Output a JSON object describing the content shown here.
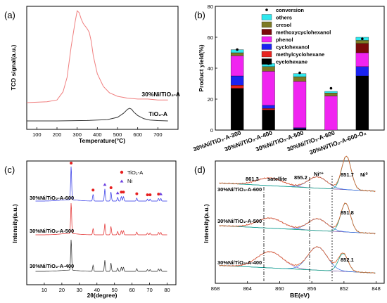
{
  "chart_data": [
    {
      "panel": "(a)",
      "type": "line",
      "xlabel": "Temperature(°C)",
      "ylabel": "TCD signal(a.u.)",
      "xlim": [
        50,
        800
      ],
      "xticks": [
        100,
        200,
        300,
        400,
        500,
        600,
        700
      ],
      "series": [
        {
          "name": "30%Ni/TiO₂-A",
          "color": "#f07f7f",
          "x": [
            50,
            150,
            200,
            230,
            250,
            260,
            270,
            290,
            300,
            310,
            320,
            330,
            340,
            350,
            360,
            370,
            380,
            400,
            430,
            460,
            500,
            550,
            600,
            650,
            700,
            750
          ],
          "y": [
            0.0,
            0.01,
            0.03,
            0.12,
            0.28,
            0.45,
            0.62,
            0.9,
            1.02,
            1.0,
            0.93,
            0.88,
            0.85,
            0.82,
            0.78,
            0.68,
            0.52,
            0.32,
            0.18,
            0.11,
            0.07,
            0.05,
            0.04,
            0.04,
            0.03,
            0.03
          ]
        },
        {
          "name": "TiO₂-A",
          "color": "#333333",
          "x": [
            50,
            200,
            350,
            450,
            500,
            530,
            550,
            560,
            570,
            580,
            600,
            630,
            660,
            700,
            750
          ],
          "y": [
            0.0,
            0.0,
            0.005,
            0.015,
            0.04,
            0.085,
            0.13,
            0.14,
            0.13,
            0.1,
            0.06,
            0.025,
            0.01,
            0.004,
            0.0
          ]
        }
      ]
    },
    {
      "panel": "(b)",
      "type": "bar",
      "stacked": true,
      "ylabel": "Product yield(%)",
      "ylim": [
        0,
        80
      ],
      "yticks": [
        0,
        20,
        40,
        60,
        80
      ],
      "categories": [
        "30%Ni/TiO₂-A-300",
        "30%Ni/TiO₂-A-400",
        "30%Ni/TiO₂-A-500",
        "30%Ni/TiO₂-A-600",
        "30%Ni/TiO₂-A-600-O₂"
      ],
      "series": [
        {
          "name": "cyclohexane",
          "color": "#000000",
          "values": [
            27,
            13,
            1,
            0,
            35
          ]
        },
        {
          "name": "methylcyclohexane",
          "color": "#e8231f",
          "values": [
            2,
            1,
            0,
            0,
            0
          ]
        },
        {
          "name": "cyclohexanol",
          "color": "#1a23f0",
          "values": [
            6,
            2,
            0.5,
            0,
            6
          ]
        },
        {
          "name": "phenol",
          "color": "#f024f0",
          "values": [
            13,
            22,
            30,
            22,
            9
          ]
        },
        {
          "name": "methoxycyclohexanol",
          "color": "#7a0a0a",
          "values": [
            0,
            0,
            0,
            0,
            6
          ]
        },
        {
          "name": "cresol",
          "color": "#7d7a25",
          "values": [
            2,
            3,
            3,
            2,
            2
          ]
        },
        {
          "name": "others",
          "color": "#2ee8ee",
          "values": [
            2,
            2,
            2,
            1,
            2
          ]
        }
      ],
      "conversion": {
        "name": "conversion",
        "values": [
          52,
          43,
          37,
          27,
          59
        ]
      }
    },
    {
      "panel": "(c)",
      "type": "line",
      "xlabel": "2θ(degree)",
      "ylabel": "Intensity(a.u.)",
      "xlim": [
        0,
        85
      ],
      "xticks": [
        10,
        20,
        30,
        40,
        50,
        60,
        70,
        80
      ],
      "legend": [
        {
          "label": "TiO₂-A",
          "marker": "circle",
          "color": "#e62020"
        },
        {
          "label": "Ni",
          "marker": "triangle",
          "color": "#6a3ee0"
        }
      ],
      "peaks": [
        {
          "x": 25.3,
          "h": 1.0,
          "phase": "TiO₂-A"
        },
        {
          "x": 37.8,
          "h": 0.2,
          "phase": "TiO₂-A"
        },
        {
          "x": 44.5,
          "h": 0.36,
          "phase": "Ni"
        },
        {
          "x": 48.0,
          "h": 0.27,
          "phase": "TiO₂-A"
        },
        {
          "x": 51.8,
          "h": 0.11,
          "phase": "Ni"
        },
        {
          "x": 53.9,
          "h": 0.14,
          "phase": "TiO₂-A"
        },
        {
          "x": 55.1,
          "h": 0.14,
          "phase": "TiO₂-A"
        },
        {
          "x": 62.7,
          "h": 0.09,
          "phase": "TiO₂-A"
        },
        {
          "x": 68.8,
          "h": 0.06,
          "phase": "TiO₂-A"
        },
        {
          "x": 70.3,
          "h": 0.06,
          "phase": "TiO₂-A"
        },
        {
          "x": 75.1,
          "h": 0.08,
          "phase": "TiO₂-A"
        },
        {
          "x": 76.4,
          "h": 0.08,
          "phase": "Ni"
        }
      ],
      "series": [
        {
          "name": "30%Ni/TiO₂-A-600",
          "color": "#2a30e6"
        },
        {
          "name": "30%Ni/TiO₂-A-500",
          "color": "#e22525"
        },
        {
          "name": "30%Ni/TiO₂-A-400",
          "color": "#222222"
        }
      ]
    },
    {
      "panel": "(d)",
      "type": "line",
      "xlabel": "BE(eV)",
      "ylabel": "Intensity(a.u.)",
      "xlim": [
        868,
        847
      ],
      "xticks": [
        868,
        864,
        860,
        856,
        852,
        848
      ],
      "series": [
        {
          "name": "30%Ni/TiO₂-A-600",
          "main_peak_be": 851.7
        },
        {
          "name": "30%Ni/TiO₂-A-500",
          "main_peak_be": 851.8
        },
        {
          "name": "30%Ni/TiO₂-A-400",
          "main_peak_be": 852.1
        }
      ],
      "annotations": [
        {
          "text": "861.3",
          "be": 861.3
        },
        {
          "text": "satellite",
          "be": 861.3
        },
        {
          "text": "855.2",
          "be": 855.2
        },
        {
          "text": "851.7",
          "be": 851.7
        },
        {
          "text": "851.8",
          "be": 851.8
        },
        {
          "text": "852.1",
          "be": 852.1
        }
      ],
      "species_labels": {
        "ni2": "Ni²⁺",
        "ni0": "Ni⁰"
      }
    }
  ]
}
